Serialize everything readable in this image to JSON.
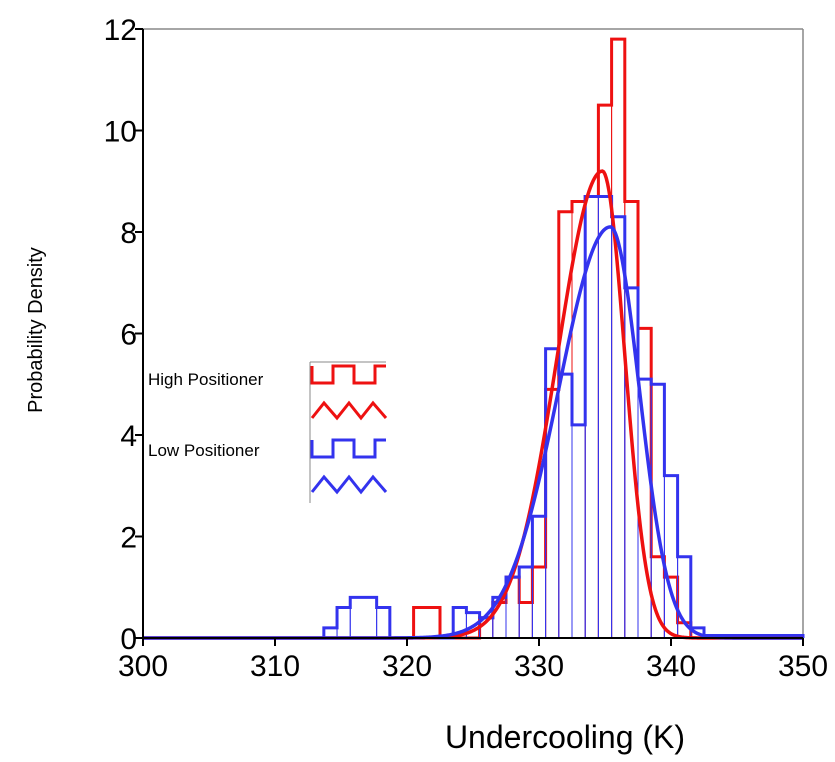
{
  "chart_data": {
    "type": "bar",
    "xlabel": "Undercooling (K)",
    "ylabel": "Probability Density",
    "xlim": [
      300,
      350
    ],
    "ylim": [
      0,
      12
    ],
    "x_ticks": [
      "300",
      "310",
      "320",
      "330",
      "340",
      "350"
    ],
    "y_ticks": [
      "0",
      "2",
      "4",
      "6",
      "8",
      "10",
      "12"
    ],
    "x_tick_values": [
      300,
      310,
      320,
      330,
      340,
      350
    ],
    "y_tick_values": [
      0,
      2,
      4,
      6,
      8,
      10,
      12
    ],
    "legend": [
      "High Positioner",
      "",
      "Low Positioner",
      ""
    ],
    "colors": {
      "high": "#ee1111",
      "low": "#3333ee",
      "axis": "#000000",
      "frame": "#888888"
    },
    "histograms": [
      {
        "name": "High Positioner",
        "color": "#ee1111",
        "bin_edges": [
          300,
          320.5,
          322.5,
          325.5,
          326.5,
          327.5,
          328.5,
          329.5,
          330.5,
          331.5,
          332.5,
          333.5,
          334.5,
          335.5,
          336.5,
          337.5,
          338.5,
          339.5,
          340.5,
          341.5,
          350
        ],
        "values": [
          0,
          0.6,
          0,
          0.4,
          0.7,
          1.2,
          0.7,
          1.4,
          4.9,
          8.4,
          8.6,
          8.7,
          10.5,
          11.8,
          8.6,
          6.1,
          1.6,
          1.2,
          0.3,
          0,
          0
        ]
      },
      {
        "name": "Low Positioner",
        "color": "#3333ee",
        "bin_edges": [
          300,
          313.7,
          314.7,
          315.7,
          317.7,
          318.7,
          323.5,
          324.5,
          325.5,
          326.5,
          327.5,
          328.5,
          329.5,
          330.5,
          331.5,
          332.5,
          333.5,
          334.5,
          335.5,
          336.5,
          337.5,
          338.5,
          339.5,
          340.5,
          341.5,
          342.5,
          350
        ],
        "values": [
          0,
          0.2,
          0.6,
          0.8,
          0.6,
          0,
          0.6,
          0.5,
          0.4,
          0.8,
          1.2,
          1.4,
          2.4,
          5.7,
          5.2,
          4.2,
          8.7,
          8.7,
          8.3,
          6.9,
          5.1,
          5.0,
          3.2,
          1.6,
          0.2,
          0.05,
          0
        ]
      }
    ],
    "fits": [
      {
        "name": "High Positioner fit",
        "color": "#ee1111",
        "shape": "skewed",
        "mode": 334.8,
        "peak": 9.2,
        "left_scale": 3.4,
        "right_scale": 1.7
      },
      {
        "name": "Low Positioner fit",
        "color": "#3333ee",
        "shape": "skewed",
        "mode": 335.4,
        "peak": 8.1,
        "left_scale": 3.9,
        "right_scale": 2.2
      }
    ]
  }
}
